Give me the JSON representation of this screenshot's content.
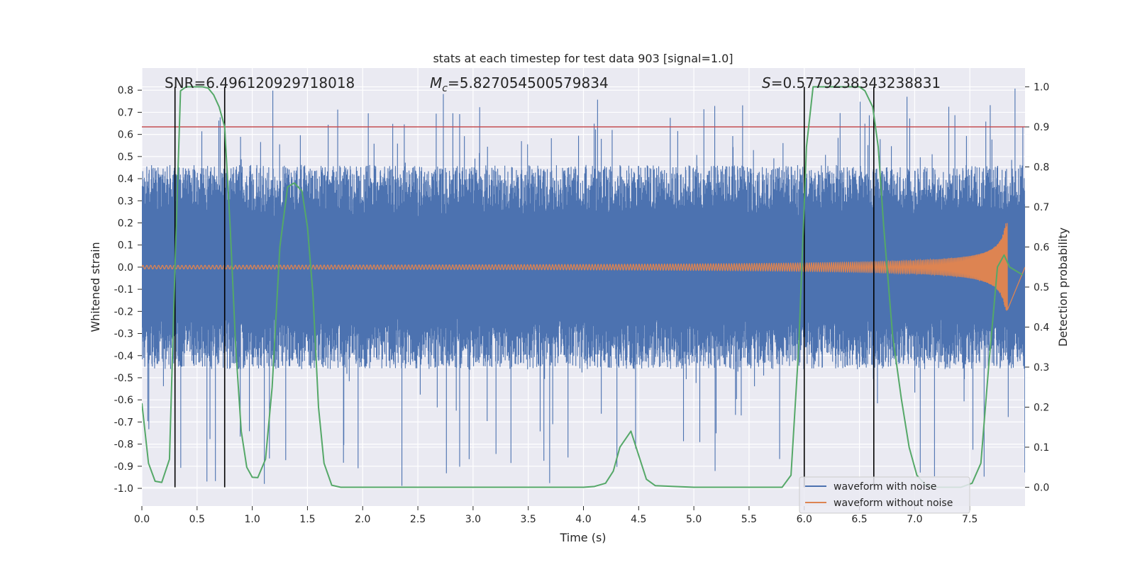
{
  "chart_data": {
    "type": "line",
    "title": "stats at each timestep for test data 903 [signal=1.0]",
    "xlabel": "Time (s)",
    "ylabel": "Whitened strain",
    "y2label": "Detection probability",
    "xlim": [
      0,
      8.0
    ],
    "ylim": [
      -1.08,
      0.9
    ],
    "y2lim": [
      -0.047,
      1.047
    ],
    "x_ticks": [
      "0.0",
      "0.5",
      "1.0",
      "1.5",
      "2.0",
      "2.5",
      "3.0",
      "3.5",
      "4.0",
      "4.5",
      "5.0",
      "5.5",
      "6.0",
      "6.5",
      "7.0",
      "7.5"
    ],
    "y_ticks": [
      "0.8",
      "0.7",
      "0.6",
      "0.5",
      "0.4",
      "0.3",
      "0.2",
      "0.1",
      "0.0",
      "-0.1",
      "-0.2",
      "-0.3",
      "-0.4",
      "-0.5",
      "-0.6",
      "-0.7",
      "-0.8",
      "-0.9",
      "-1.0"
    ],
    "y2_ticks": [
      "1.0",
      "0.9",
      "0.8",
      "0.7",
      "0.6",
      "0.5",
      "0.4",
      "0.3",
      "0.2",
      "0.1",
      "0.0"
    ],
    "annotations": {
      "snr": "SNR=6.496120929718018",
      "mc_symbol": "M",
      "mc_sub": "c",
      "mc_value": "=5.827054500579834",
      "s_symbol": "S",
      "s_value": "=0.5779238343238831"
    },
    "threshold": {
      "y2": 0.9,
      "color": "#c44e52"
    },
    "vertical_lines_x": [
      0.3,
      0.75,
      6.0,
      6.63
    ],
    "series": [
      {
        "name": "waveform with noise",
        "color": "#4c72b0",
        "envelope": {
          "typical_peak": 0.42,
          "max_peak": 0.81,
          "min_trough": -1.0
        }
      },
      {
        "name": "waveform without noise",
        "color": "#dd8452",
        "start_amplitude": 0.008,
        "peak_amplitude": 0.2,
        "merger_time": 7.84
      },
      {
        "name": "Detection probability",
        "color": "#55a868",
        "axis": "right",
        "x": [
          0.0,
          0.06,
          0.12,
          0.18,
          0.25,
          0.3,
          0.35,
          0.4,
          0.45,
          0.5,
          0.55,
          0.6,
          0.65,
          0.7,
          0.75,
          0.8,
          0.85,
          0.9,
          0.95,
          1.0,
          1.05,
          1.12,
          1.18,
          1.25,
          1.32,
          1.38,
          1.45,
          1.5,
          1.55,
          1.6,
          1.65,
          1.72,
          1.8,
          1.9,
          2.0,
          3.0,
          4.0,
          4.1,
          4.2,
          4.27,
          4.33,
          4.43,
          4.5,
          4.57,
          4.65,
          5.0,
          5.8,
          5.88,
          5.95,
          6.02,
          6.08,
          6.2,
          6.5,
          6.55,
          6.62,
          6.67,
          6.72,
          6.8,
          6.88,
          6.95,
          7.02,
          7.1,
          7.2,
          7.3,
          7.42,
          7.52,
          7.6,
          7.67,
          7.75,
          7.81,
          7.86,
          7.92,
          7.98
        ],
        "y": [
          0.21,
          0.06,
          0.015,
          0.012,
          0.07,
          0.55,
          0.99,
          1.0,
          1.0,
          1.0,
          1.0,
          0.997,
          0.98,
          0.95,
          0.9,
          0.65,
          0.35,
          0.14,
          0.05,
          0.025,
          0.024,
          0.07,
          0.25,
          0.6,
          0.75,
          0.76,
          0.74,
          0.65,
          0.48,
          0.2,
          0.06,
          0.005,
          0.0,
          0.0,
          0.0,
          0.0,
          0.0,
          0.002,
          0.01,
          0.04,
          0.1,
          0.14,
          0.08,
          0.02,
          0.004,
          0.0,
          0.0,
          0.03,
          0.35,
          0.85,
          1.0,
          1.0,
          1.0,
          0.99,
          0.95,
          0.85,
          0.65,
          0.38,
          0.22,
          0.1,
          0.03,
          0.005,
          0.0,
          0.0,
          0.0,
          0.01,
          0.06,
          0.3,
          0.55,
          0.58,
          0.55,
          0.54,
          0.53
        ]
      }
    ],
    "legend_position": "lower-right"
  }
}
